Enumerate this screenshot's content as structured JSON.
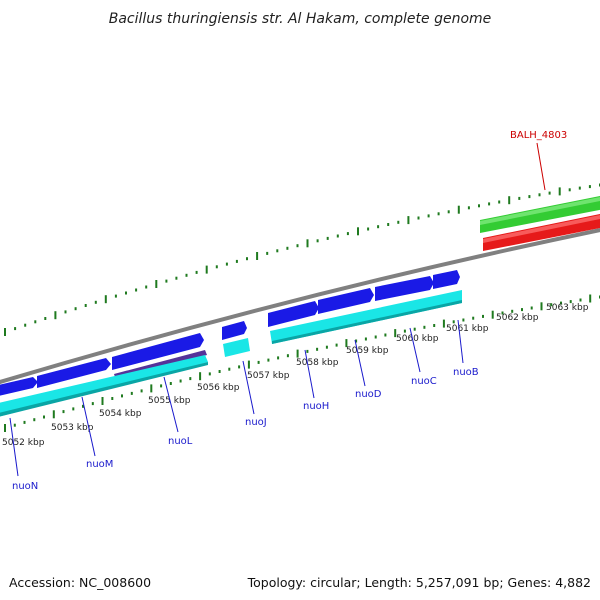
{
  "title": "Bacillus thuringiensis str. Al Hakam, complete genome",
  "footer": {
    "accession": "Accession: NC_008600",
    "summary": "Topology: circular; Length: 5,257,091 bp; Genes: 4,882"
  },
  "colors": {
    "backbone": "#808080",
    "forward_cds": "#1a1ae6",
    "reverse_cds": "#1ae6e6",
    "highlight_forward": "#33cc33",
    "highlight_reverse": "#e61a1a",
    "tick": "#1f7a1f",
    "label_blue": "#1a1acc",
    "label_red": "#cc0000"
  },
  "scale_labels": [
    "5052 kbp",
    "5053 kbp",
    "5054 kbp",
    "5055 kbp",
    "5056 kbp",
    "5057 kbp",
    "5058 kbp",
    "5059 kbp",
    "5060 kbp",
    "5061 kbp",
    "5062 kbp",
    "5063 kbp"
  ],
  "gene_labels": [
    {
      "name": "nuoN",
      "color": "blue"
    },
    {
      "name": "nuoM",
      "color": "blue"
    },
    {
      "name": "nuoL",
      "color": "blue"
    },
    {
      "name": "nuoJ",
      "color": "blue"
    },
    {
      "name": "nuoH",
      "color": "blue"
    },
    {
      "name": "nuoD",
      "color": "blue"
    },
    {
      "name": "nuoC",
      "color": "blue"
    },
    {
      "name": "nuoB",
      "color": "blue"
    },
    {
      "name": "BALH_4803",
      "color": "red"
    }
  ]
}
